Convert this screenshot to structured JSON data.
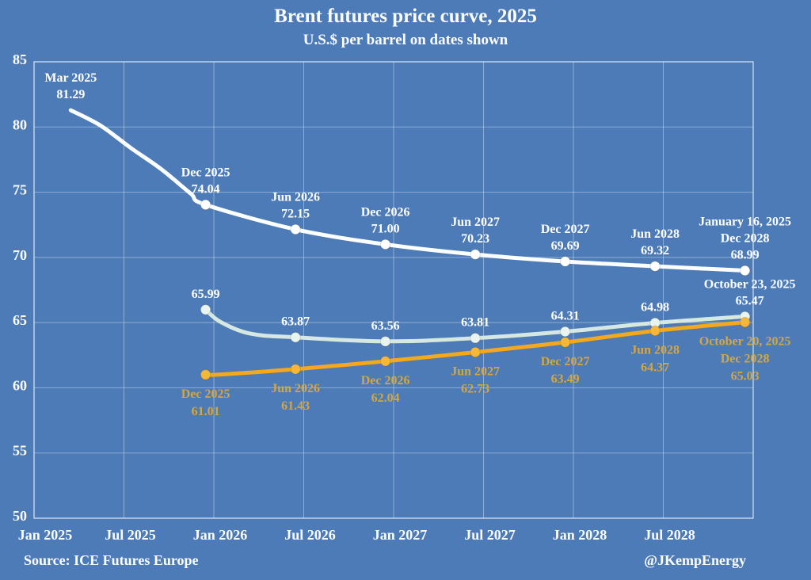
{
  "title": "Brent futures price curve, 2025",
  "subtitle": "U.S.$ per barrel on dates shown",
  "footer": {
    "source": "Source: ICE Futures Europe",
    "handle": "@JKempEnergy"
  },
  "chart_data": {
    "type": "line",
    "title": "Brent futures price curve, 2025",
    "subtitle": "U.S.$ per barrel on dates shown",
    "unit": "U.S.$ per barrel",
    "grid": true,
    "background_color": "#4c7bb7",
    "x_axis": {
      "tick_labels": [
        "Jan 2025",
        "Jul 2025",
        "Jan 2026",
        "Jul 2026",
        "Jan 2027",
        "Jul 2027",
        "Jan 2028",
        "Jul 2028"
      ],
      "tick_months": [
        0,
        6,
        12,
        18,
        24,
        30,
        36,
        42
      ],
      "range_months": [
        0,
        48
      ]
    },
    "y_axis": {
      "ticks": [
        50,
        55,
        60,
        65,
        70,
        75,
        80,
        85
      ],
      "range": [
        50,
        85
      ]
    },
    "series": [
      {
        "name": "January 16, 2025",
        "line_color": "#fcfefe",
        "marker_fill": "#ffffff",
        "label_color": "#ffffff",
        "points": [
          {
            "contract": "Mar 2025",
            "m": 2,
            "value": 81.29,
            "marker": false,
            "label_side": "above",
            "label_lines": [
              "Mar 2025",
              "81.29"
            ]
          },
          {
            "m": 4,
            "value": 80.1,
            "shape_only": true
          },
          {
            "m": 6,
            "value": 78.4,
            "shape_only": true
          },
          {
            "m": 8,
            "value": 76.8,
            "shape_only": true
          },
          {
            "m": 10,
            "value": 74.9,
            "shape_only": true
          },
          {
            "contract": "Dec 2025",
            "m": 11,
            "value": 74.04,
            "label_side": "above",
            "label_lines": [
              "Dec 2025",
              "74.04"
            ]
          },
          {
            "contract": "Jun 2026",
            "m": 17,
            "value": 72.15,
            "label_side": "above",
            "label_lines": [
              "Jun 2026",
              "72.15"
            ]
          },
          {
            "contract": "Dec 2026",
            "m": 23,
            "value": 71.0,
            "label_side": "above",
            "label_lines": [
              "Dec 2026",
              "71.00"
            ]
          },
          {
            "contract": "Jun 2027",
            "m": 29,
            "value": 70.23,
            "label_side": "above",
            "label_lines": [
              "Jun 2027",
              "70.23"
            ]
          },
          {
            "contract": "Dec 2027",
            "m": 35,
            "value": 69.69,
            "label_side": "above",
            "label_lines": [
              "Dec 2027",
              "69.69"
            ]
          },
          {
            "contract": "Jun 2028",
            "m": 41,
            "value": 69.32,
            "label_side": "above",
            "label_lines": [
              "Jun 2028",
              "69.32"
            ]
          },
          {
            "contract": "Dec 2028",
            "m": 47,
            "value": 68.99,
            "label_side": "above",
            "label_lines": [
              "January 16, 2025",
              "Dec 2028",
              "68.99"
            ]
          }
        ]
      },
      {
        "name": "October 23, 2025",
        "line_color": "#d6e8e0",
        "marker_fill": "#eaf4ef",
        "label_color": "#ffffff",
        "points": [
          {
            "contract": "Dec 2025",
            "m": 11,
            "value": 65.99,
            "label_side": "above",
            "label_lines": [
              "65.99"
            ]
          },
          {
            "m": 12,
            "value": 65.05,
            "shape_only": true
          },
          {
            "m": 14,
            "value": 64.15,
            "shape_only": true
          },
          {
            "contract": "Jun 2026",
            "m": 17,
            "value": 63.87,
            "label_side": "above",
            "label_lines": [
              "63.87"
            ]
          },
          {
            "contract": "Dec 2026",
            "m": 23,
            "value": 63.56,
            "label_side": "above",
            "label_lines": [
              "63.56"
            ]
          },
          {
            "contract": "Jun 2027",
            "m": 29,
            "value": 63.81,
            "label_side": "above",
            "label_lines": [
              "63.81"
            ]
          },
          {
            "contract": "Dec 2027",
            "m": 35,
            "value": 64.31,
            "label_side": "above",
            "label_lines": [
              "64.31"
            ]
          },
          {
            "contract": "Jun 2028",
            "m": 41,
            "value": 64.98,
            "label_side": "above",
            "label_lines": [
              "64.98"
            ]
          },
          {
            "contract": "Dec 2028",
            "m": 47,
            "value": 65.47,
            "label_dx": 6,
            "label_side": "above",
            "label_lines": [
              "October 23, 2025",
              "65.47"
            ]
          }
        ]
      },
      {
        "name": "October 20, 2025",
        "line_color": "#f4a81a",
        "marker_fill": "#f6b637",
        "label_color": "#d6a63e",
        "points": [
          {
            "contract": "Dec 2025",
            "m": 11,
            "value": 61.01,
            "label_side": "below",
            "label_lines": [
              "Dec 2025",
              "61.01"
            ]
          },
          {
            "m": 12,
            "value": 61.02,
            "shape_only": true
          },
          {
            "contract": "Jun 2026",
            "m": 17,
            "value": 61.43,
            "label_side": "below",
            "label_lines": [
              "Jun 2026",
              "61.43"
            ]
          },
          {
            "contract": "Dec 2026",
            "m": 23,
            "value": 62.04,
            "label_side": "below",
            "label_lines": [
              "Dec 2026",
              "62.04"
            ]
          },
          {
            "contract": "Jun 2027",
            "m": 29,
            "value": 62.73,
            "label_side": "below",
            "label_lines": [
              "Jun 2027",
              "62.73"
            ]
          },
          {
            "contract": "Dec 2027",
            "m": 35,
            "value": 63.49,
            "label_side": "below",
            "label_lines": [
              "Dec 2027",
              "63.49"
            ]
          },
          {
            "contract": "Jun 2028",
            "m": 41,
            "value": 64.37,
            "label_side": "below",
            "label_lines": [
              "Jun 2028",
              "64.37"
            ]
          },
          {
            "contract": "Dec 2028",
            "m": 47,
            "value": 65.03,
            "label_side": "below",
            "label_lines": [
              "October 20, 2025",
              "Dec 2028",
              "65.03"
            ]
          }
        ]
      }
    ]
  }
}
